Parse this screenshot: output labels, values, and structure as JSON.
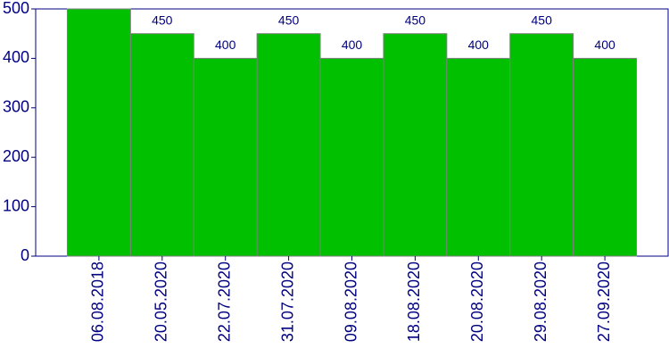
{
  "chart_data": {
    "type": "bar",
    "categories": [
      "06.08.2018",
      "20.05.2020",
      "22.07.2020",
      "31.07.2020",
      "09.08.2020",
      "18.08.2020",
      "20.08.2020",
      "29.08.2020",
      "27.09.2020"
    ],
    "values": [
      500,
      450,
      400,
      450,
      400,
      450,
      400,
      450,
      400
    ],
    "color": "#00c000",
    "ylim": [
      0,
      500
    ],
    "yticks": [
      0,
      100,
      200,
      300,
      400,
      500
    ]
  }
}
